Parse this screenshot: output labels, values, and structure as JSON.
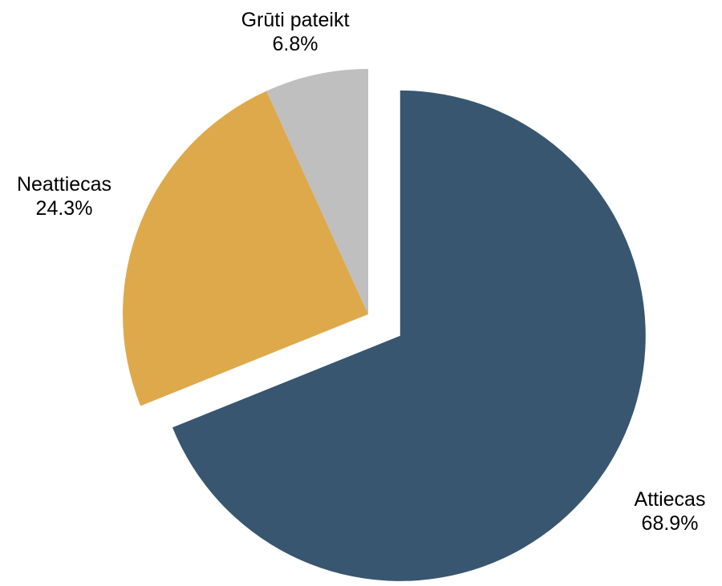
{
  "chart_data": {
    "type": "pie",
    "title": "",
    "slices": [
      {
        "label": "Attiecas",
        "value": 68.9,
        "value_label": "68.9%",
        "color": "#38566f",
        "exploded": true
      },
      {
        "label": "Neattiecas",
        "value": 24.3,
        "value_label": "24.3%",
        "color": "#dea94b",
        "exploded": false
      },
      {
        "label": "Grūti pateikt",
        "value": 6.8,
        "value_label": "6.8%",
        "color": "#bfbfbf",
        "exploded": false
      }
    ],
    "start_angle": "12 o'clock",
    "direction": "clockwise",
    "legend": "none"
  }
}
